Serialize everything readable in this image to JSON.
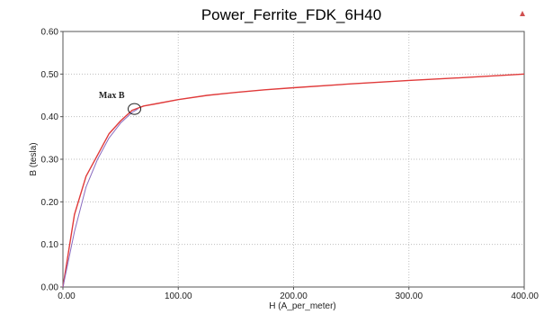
{
  "chart_data": {
    "type": "line",
    "title": "Power_Ferrite_FDK_6H40",
    "xlabel": "H (A_per_meter)",
    "ylabel": "B (tesla)",
    "xlim": [
      0,
      400
    ],
    "ylim": [
      0,
      0.6
    ],
    "x_ticks": [
      "0.00",
      "100.00",
      "200.00",
      "300.00",
      "400.00"
    ],
    "y_ticks": [
      "0.00",
      "0.10",
      "0.20",
      "0.30",
      "0.40",
      "0.50",
      "0.60"
    ],
    "grid": true,
    "series": [
      {
        "color": "#e03a3a",
        "x": [
          0,
          10,
          20,
          30,
          40,
          50,
          60,
          70,
          80,
          100,
          125,
          150,
          175,
          200,
          250,
          300,
          350,
          400
        ],
        "y": [
          0.0,
          0.17,
          0.26,
          0.31,
          0.36,
          0.39,
          0.415,
          0.425,
          0.43,
          0.44,
          0.45,
          0.457,
          0.463,
          0.468,
          0.477,
          0.485,
          0.492,
          0.5
        ]
      },
      {
        "color": "#8a6cc0",
        "x": [
          0,
          10,
          20,
          30,
          40,
          50,
          60,
          65
        ],
        "y": [
          0.0,
          0.13,
          0.235,
          0.3,
          0.35,
          0.385,
          0.41,
          0.418
        ]
      }
    ],
    "annotation": {
      "label": "Max B",
      "x": 62,
      "y": 0.418
    }
  },
  "corner_icon": "triangle-up-icon"
}
